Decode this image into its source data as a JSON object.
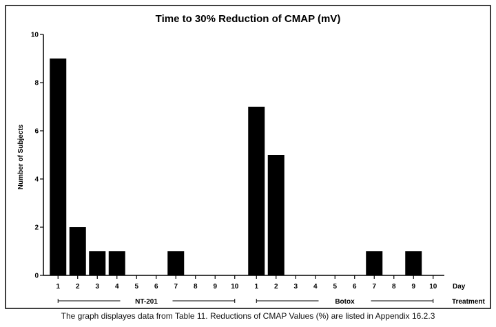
{
  "chart_data": {
    "type": "bar",
    "title": "Time to 30% Reduction of CMAP (mV)",
    "ylabel": "Number of Subjects",
    "xlabel": "Day",
    "group_axis_label": "Treatment",
    "ylim": [
      0,
      10
    ],
    "yticks": [
      0,
      2,
      4,
      6,
      8,
      10
    ],
    "groups": [
      {
        "name": "NT-201",
        "categories": [
          "1",
          "2",
          "3",
          "4",
          "5",
          "6",
          "7",
          "8",
          "9",
          "10"
        ],
        "values": [
          9,
          2,
          1,
          1,
          0,
          0,
          1,
          0,
          0,
          0
        ]
      },
      {
        "name": "Botox",
        "categories": [
          "1",
          "2",
          "3",
          "4",
          "5",
          "6",
          "7",
          "8",
          "9",
          "10"
        ],
        "values": [
          7,
          5,
          0,
          0,
          0,
          0,
          1,
          0,
          1,
          0
        ]
      }
    ],
    "grid": false,
    "legend": "none"
  },
  "caption": "The graph displayes data from Table 11. Reductions of CMAP Values (%) are listed in Appendix 16.2.3"
}
